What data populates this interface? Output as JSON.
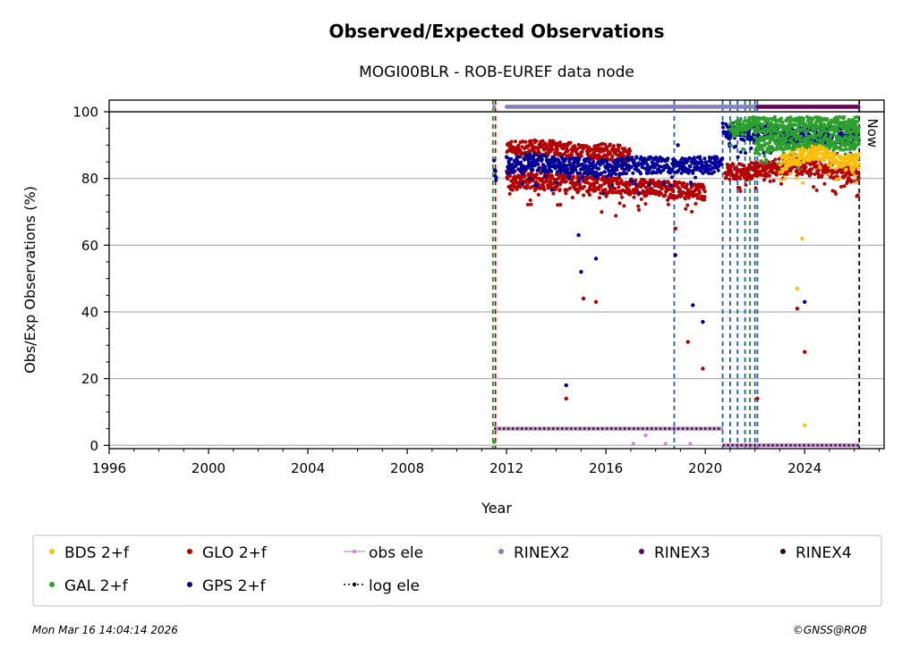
{
  "chart_data": {
    "type": "scatter",
    "title": "Observed/Expected Observations",
    "subtitle": "MOGI00BLR - ROB-EUREF data node",
    "xlabel": "Year",
    "ylabel": "Obs/Exp Observations (%)",
    "xlim": [
      1996,
      2027.2
    ],
    "ylim": [
      -1,
      103.5
    ],
    "x_ticks": [
      "1996",
      "2000",
      "2004",
      "2008",
      "2012",
      "2016",
      "2020",
      "2024"
    ],
    "y_ticks": [
      "0",
      "20",
      "40",
      "60",
      "80",
      "100"
    ],
    "grid": "horizontal",
    "now_label": "Now",
    "now_year": 2026.2,
    "reference_line": 100,
    "legend_position": "bottom",
    "legend": [
      {
        "label": "BDS 2+f",
        "color": "#ffbe0b",
        "marker": "dot"
      },
      {
        "label": "GAL 2+f",
        "color": "#2ca02c",
        "marker": "dot"
      },
      {
        "label": "GLO 2+f",
        "color": "#b40000",
        "marker": "dot"
      },
      {
        "label": "GPS 2+f",
        "color": "#000099",
        "marker": "dot"
      },
      {
        "label": "obs ele",
        "color": "#c88fd0",
        "marker": "line-dot"
      },
      {
        "label": "log ele",
        "color": "#000000",
        "marker": "dotted-line"
      },
      {
        "label": "RINEX2",
        "color": "#8a7fc0",
        "marker": "dot"
      },
      {
        "label": "RINEX3",
        "color": "#6b005e",
        "marker": "dot"
      },
      {
        "label": "RINEX4",
        "color": "#2a0a1f",
        "marker": "dot"
      }
    ],
    "series": [
      {
        "name": "GLO 2+f",
        "color": "#b40000",
        "segments": [
          {
            "x": [
              2012.0,
              2013.0,
              2014.0,
              2015.0,
              2016.0,
              2017.0
            ],
            "y": [
              89,
              89,
              89,
              88,
              88,
              87
            ]
          },
          {
            "x": [
              2012.0,
              2014.0,
              2016.0,
              2018.0,
              2020.0
            ],
            "y": [
              80,
              79,
              78,
              77,
              76
            ]
          },
          {
            "x": [
              2020.8,
              2021.5,
              2022.5,
              2023.5,
              2024.5,
              2025.5,
              2026.2
            ],
            "y": [
              82,
              82,
              83,
              84,
              83,
              82,
              81
            ]
          }
        ],
        "outliers": [
          {
            "x": 2014.4,
            "y": 14
          },
          {
            "x": 2015.1,
            "y": 44
          },
          {
            "x": 2015.6,
            "y": 43
          },
          {
            "x": 2018.8,
            "y": 65
          },
          {
            "x": 2019.3,
            "y": 31
          },
          {
            "x": 2019.9,
            "y": 23
          },
          {
            "x": 2023.7,
            "y": 41
          },
          {
            "x": 2024.0,
            "y": 28
          },
          {
            "x": 2022.1,
            "y": 14
          }
        ]
      },
      {
        "name": "GPS 2+f",
        "color": "#000099",
        "segments": [
          {
            "x": [
              2011.5,
              2011.6
            ],
            "y": [
              85,
              80
            ]
          },
          {
            "x": [
              2012.0,
              2013.0,
              2014.0,
              2015.0,
              2016.0,
              2017.0,
              2018.0,
              2019.0,
              2020.0,
              2020.7
            ],
            "y": [
              84,
              85,
              84,
              84,
              83,
              84,
              84,
              84,
              84,
              84
            ]
          },
          {
            "x": [
              2020.7,
              2021.5,
              2022.5,
              2023.5,
              2024.5,
              2025.5,
              2026.2
            ],
            "y": [
              95,
              94,
              94,
              93,
              93,
              93,
              93
            ]
          }
        ],
        "outliers": [
          {
            "x": 2014.4,
            "y": 18
          },
          {
            "x": 2014.9,
            "y": 63
          },
          {
            "x": 2015.0,
            "y": 52
          },
          {
            "x": 2015.6,
            "y": 56
          },
          {
            "x": 2018.8,
            "y": 57
          },
          {
            "x": 2019.5,
            "y": 42
          },
          {
            "x": 2019.9,
            "y": 37
          },
          {
            "x": 2018.9,
            "y": 90
          },
          {
            "x": 2024.0,
            "y": 43
          }
        ]
      },
      {
        "name": "GAL 2+f",
        "color": "#2ca02c",
        "segments": [
          {
            "x": [
              2021.0,
              2022.0,
              2023.0,
              2024.0,
              2025.0,
              2026.2
            ],
            "y": [
              95,
              96,
              96,
              96,
              96,
              96
            ]
          },
          {
            "x": [
              2022.0,
              2023.0,
              2024.0,
              2025.0,
              2026.2
            ],
            "y": [
              90,
              91,
              91,
              91,
              91
            ]
          }
        ],
        "outliers": [
          {
            "x": 2011.5,
            "y": 1
          }
        ]
      },
      {
        "name": "BDS 2+f",
        "color": "#ffbe0b",
        "segments": [
          {
            "x": [
              2023.0,
              2023.5,
              2024.0,
              2024.5,
              2025.0,
              2025.5,
              2026.2
            ],
            "y": [
              84,
              86,
              87,
              88,
              86,
              85,
              85
            ]
          }
        ],
        "outliers": [
          {
            "x": 2023.7,
            "y": 47
          },
          {
            "x": 2023.9,
            "y": 62
          },
          {
            "x": 2024.0,
            "y": 6
          }
        ]
      },
      {
        "name": "obs ele",
        "color": "#c88fd0",
        "segments": [
          {
            "x": [
              2011.5,
              2020.7
            ],
            "y": [
              5,
              5
            ]
          },
          {
            "x": [
              2020.7,
              2026.2
            ],
            "y": [
              0,
              0
            ]
          }
        ],
        "outliers": [
          {
            "x": 2017.1,
            "y": 0.5
          },
          {
            "x": 2017.6,
            "y": 3
          },
          {
            "x": 2018.4,
            "y": 0.5
          },
          {
            "x": 2019.4,
            "y": 0.5
          }
        ]
      },
      {
        "name": "log ele",
        "color": "#000000",
        "segments": [
          {
            "x": [
              2011.5,
              2020.7
            ],
            "y": [
              5,
              5
            ]
          },
          {
            "x": [
              2020.7,
              2026.2
            ],
            "y": [
              0,
              0
            ]
          }
        ],
        "outliers": []
      },
      {
        "name": "RINEX2",
        "color": "#8a7fc0",
        "segments": [
          {
            "x": [
              2012.0,
              2022.1
            ],
            "y": [
              101.5,
              101.5
            ]
          }
        ],
        "outliers": [
          {
            "x": 2011.5,
            "y": 101.5
          }
        ]
      },
      {
        "name": "RINEX3",
        "color": "#6b005e",
        "segments": [
          {
            "x": [
              2022.1,
              2026.2
            ],
            "y": [
              101.5,
              101.5
            ]
          }
        ],
        "outliers": []
      },
      {
        "name": "RINEX4",
        "color": "#2a0a1f",
        "segments": [],
        "outliers": []
      }
    ],
    "event_lines": [
      {
        "x": 2011.45,
        "color": "#2a8a2a"
      },
      {
        "x": 2011.55,
        "color": "#b40000"
      },
      {
        "x": 2018.75,
        "color": "#1f5fa8"
      },
      {
        "x": 2020.7,
        "color": "#1f5fa8"
      },
      {
        "x": 2021.0,
        "color": "#1f5fa8"
      },
      {
        "x": 2021.3,
        "color": "#1f5fa8"
      },
      {
        "x": 2021.6,
        "color": "#1f5fa8"
      },
      {
        "x": 2021.8,
        "color": "#2a8a2a"
      },
      {
        "x": 2022.0,
        "color": "#1f5fa8"
      },
      {
        "x": 2022.1,
        "color": "#1f5fa8"
      },
      {
        "x": 2026.2,
        "color": "#000000"
      }
    ]
  },
  "footer": {
    "timestamp": "Mon Mar 16 14:04:14 2026",
    "copyright": "©GNSS@ROB"
  }
}
